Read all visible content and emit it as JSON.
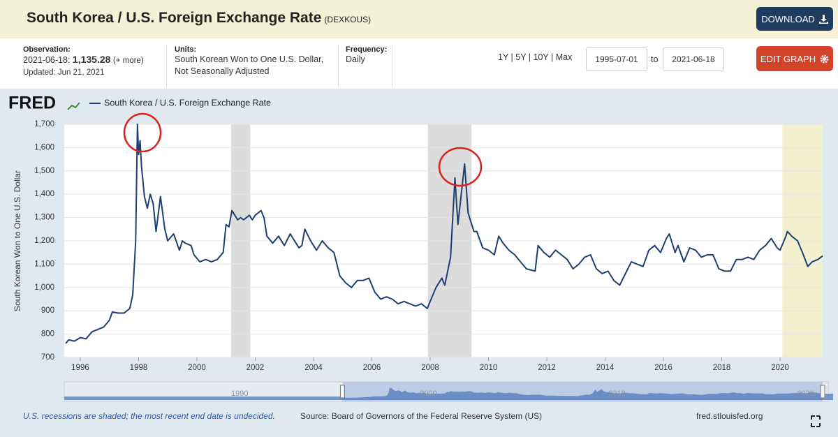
{
  "header": {
    "title": "South Korea / U.S. Foreign Exchange Rate",
    "series_id": "(DEXKOUS)",
    "download": "DOWNLOAD"
  },
  "info": {
    "observation_label": "Observation:",
    "observation_date": "2021-06-18:",
    "observation_value": "1,135.28",
    "more": "(+ more)",
    "updated": "Updated: Jun 21, 2021",
    "units_label": "Units:",
    "units_line1": "South Korean Won to One U.S. Dollar,",
    "units_line2": "Not Seasonally Adjusted",
    "frequency_label": "Frequency:",
    "frequency": "Daily",
    "ranges": "1Y | 5Y | 10Y | Max",
    "start": "1995-07-01",
    "to": "to",
    "end": "2021-06-18",
    "edit": "EDIT GRAPH"
  },
  "chart_data": {
    "type": "line",
    "logo": "FRED",
    "ylabel": "South Korean Won to One U.S. Dollar",
    "xlim": [
      1995.45,
      2021.46
    ],
    "xticks": [
      1996,
      1998,
      2000,
      2002,
      2004,
      2006,
      2008,
      2010,
      2012,
      2014,
      2016,
      2018,
      2020
    ],
    "ylim": [
      700,
      1700
    ],
    "yticks": [
      700,
      800,
      900,
      {
        "value": 1000,
        "label": "1,000"
      },
      {
        "value": 1100,
        "label": "1,100"
      },
      {
        "value": 1200,
        "label": "1,200"
      },
      {
        "value": 1300,
        "label": "1,300"
      },
      {
        "value": 1400,
        "label": "1,400"
      },
      {
        "value": 1500,
        "label": "1,500"
      },
      {
        "value": 1600,
        "label": "1,600"
      },
      {
        "value": 1700,
        "label": "1,700"
      }
    ],
    "grid": true,
    "recessions": [
      [
        2001.17,
        2001.83
      ],
      [
        2007.92,
        2009.42
      ]
    ],
    "undecided_recession": [
      2020.08,
      2021.46
    ],
    "navigator_xlim": [
      1980.7,
      2021.2
    ],
    "navigator_ticks": [
      1990,
      2000,
      2010,
      2020
    ],
    "x": [
      1995.5,
      1995.6,
      1995.8,
      1996.0,
      1996.2,
      1996.4,
      1996.6,
      1996.8,
      1997.0,
      1997.1,
      1997.3,
      1997.5,
      1997.7,
      1997.8,
      1997.9,
      1997.96,
      1998.0,
      1998.05,
      1998.1,
      1998.2,
      1998.3,
      1998.4,
      1998.5,
      1998.6,
      1998.75,
      1998.9,
      1999.0,
      1999.2,
      1999.4,
      1999.5,
      1999.6,
      1999.8,
      1999.9,
      2000.1,
      2000.3,
      2000.5,
      2000.7,
      2000.9,
      2001.0,
      2001.1,
      2001.2,
      2001.3,
      2001.4,
      2001.5,
      2001.6,
      2001.8,
      2001.9,
      2002.0,
      2002.2,
      2002.3,
      2002.4,
      2002.6,
      2002.8,
      2003.0,
      2003.2,
      2003.4,
      2003.5,
      2003.6,
      2003.7,
      2003.9,
      2004.1,
      2004.3,
      2004.5,
      2004.7,
      2004.8,
      2004.9,
      2005.1,
      2005.3,
      2005.5,
      2005.7,
      2005.9,
      2006.1,
      2006.3,
      2006.5,
      2006.7,
      2006.9,
      2007.1,
      2007.3,
      2007.5,
      2007.7,
      2007.9,
      2008.0,
      2008.2,
      2008.4,
      2008.5,
      2008.7,
      2008.85,
      2008.95,
      2009.05,
      2009.18,
      2009.3,
      2009.4,
      2009.5,
      2009.6,
      2009.8,
      2010.0,
      2010.2,
      2010.35,
      2010.5,
      2010.7,
      2010.9,
      2011.1,
      2011.3,
      2011.6,
      2011.7,
      2011.9,
      2012.1,
      2012.3,
      2012.5,
      2012.7,
      2012.9,
      2013.1,
      2013.3,
      2013.5,
      2013.7,
      2013.9,
      2014.1,
      2014.3,
      2014.5,
      2014.7,
      2014.9,
      2015.1,
      2015.3,
      2015.5,
      2015.7,
      2015.9,
      2016.1,
      2016.2,
      2016.4,
      2016.5,
      2016.7,
      2016.9,
      2017.1,
      2017.3,
      2017.5,
      2017.7,
      2017.9,
      2018.1,
      2018.3,
      2018.5,
      2018.7,
      2018.9,
      2019.1,
      2019.3,
      2019.5,
      2019.7,
      2019.9,
      2020.0,
      2020.2,
      2020.25,
      2020.4,
      2020.6,
      2020.8,
      2020.95,
      2021.1,
      2021.3,
      2021.46
    ],
    "series": [
      {
        "name": "South Korea / U.S. Foreign Exchange Rate",
        "color": "#1f3f73",
        "values": [
          760,
          775,
          770,
          785,
          780,
          810,
          820,
          830,
          860,
          895,
          890,
          890,
          910,
          970,
          1200,
          1700,
          1570,
          1630,
          1520,
          1390,
          1340,
          1400,
          1360,
          1240,
          1390,
          1250,
          1200,
          1230,
          1160,
          1200,
          1190,
          1180,
          1140,
          1110,
          1120,
          1110,
          1120,
          1150,
          1270,
          1260,
          1330,
          1310,
          1290,
          1300,
          1290,
          1310,
          1290,
          1310,
          1330,
          1300,
          1220,
          1190,
          1220,
          1180,
          1230,
          1190,
          1170,
          1180,
          1250,
          1200,
          1160,
          1200,
          1170,
          1150,
          1100,
          1050,
          1020,
          1000,
          1030,
          1030,
          1040,
          980,
          950,
          960,
          950,
          930,
          940,
          930,
          920,
          930,
          910,
          940,
          1000,
          1040,
          1010,
          1130,
          1470,
          1270,
          1380,
          1530,
          1320,
          1280,
          1240,
          1240,
          1170,
          1160,
          1140,
          1220,
          1190,
          1160,
          1140,
          1110,
          1080,
          1070,
          1180,
          1150,
          1130,
          1160,
          1140,
          1120,
          1080,
          1100,
          1130,
          1140,
          1080,
          1060,
          1070,
          1030,
          1010,
          1060,
          1110,
          1100,
          1090,
          1160,
          1180,
          1150,
          1210,
          1230,
          1150,
          1180,
          1110,
          1170,
          1160,
          1130,
          1140,
          1140,
          1080,
          1070,
          1070,
          1120,
          1120,
          1130,
          1120,
          1160,
          1180,
          1210,
          1170,
          1160,
          1220,
          1240,
          1220,
          1200,
          1140,
          1090,
          1110,
          1120,
          1135.28
        ]
      }
    ]
  },
  "footer": {
    "note": "U.S. recessions are shaded; the most recent end date is undecided.",
    "source": "Source: Board of Governors of the Federal Reserve System (US)",
    "site": "fred.stlouisfed.org"
  }
}
